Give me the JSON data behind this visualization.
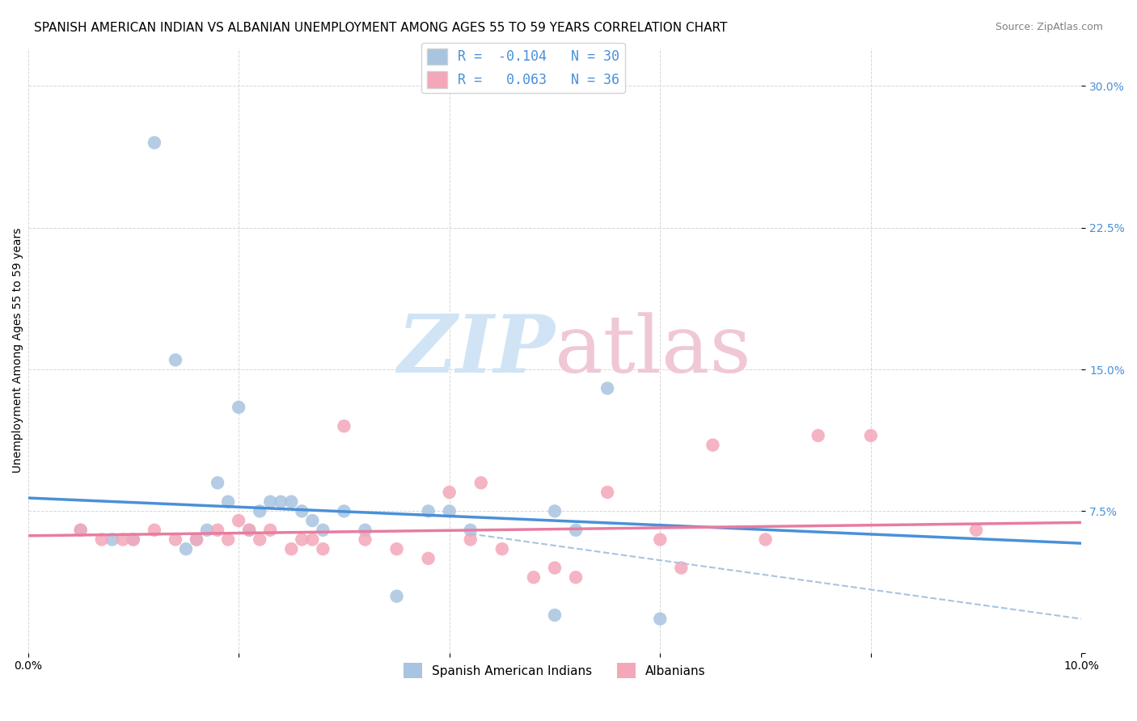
{
  "title": "SPANISH AMERICAN INDIAN VS ALBANIAN UNEMPLOYMENT AMONG AGES 55 TO 59 YEARS CORRELATION CHART",
  "source": "Source: ZipAtlas.com",
  "ylabel": "Unemployment Among Ages 55 to 59 years",
  "yticks": [
    0.0,
    0.075,
    0.15,
    0.225,
    0.3
  ],
  "ytick_labels": [
    "",
    "7.5%",
    "15.0%",
    "22.5%",
    "30.0%"
  ],
  "xlim": [
    0.0,
    0.1
  ],
  "ylim": [
    0.0,
    0.32
  ],
  "legend_line1": "R =  -0.104   N = 30",
  "legend_line2": "R =   0.063   N = 36",
  "color_blue": "#a8c4e0",
  "color_pink": "#f4a7b9",
  "line_blue": "#4a90d9",
  "line_pink": "#e87ca0",
  "line_dashed": "#a8c4e0",
  "blue_scatter_x": [
    0.005,
    0.008,
    0.01,
    0.012,
    0.014,
    0.015,
    0.016,
    0.017,
    0.018,
    0.019,
    0.02,
    0.021,
    0.022,
    0.023,
    0.024,
    0.025,
    0.026,
    0.027,
    0.028,
    0.03,
    0.032,
    0.035,
    0.038,
    0.04,
    0.042,
    0.05,
    0.05,
    0.052,
    0.055,
    0.06
  ],
  "blue_scatter_y": [
    0.065,
    0.06,
    0.06,
    0.27,
    0.155,
    0.055,
    0.06,
    0.065,
    0.09,
    0.08,
    0.13,
    0.065,
    0.075,
    0.08,
    0.08,
    0.08,
    0.075,
    0.07,
    0.065,
    0.075,
    0.065,
    0.03,
    0.075,
    0.075,
    0.065,
    0.075,
    0.02,
    0.065,
    0.14,
    0.018
  ],
  "pink_scatter_x": [
    0.005,
    0.007,
    0.009,
    0.01,
    0.012,
    0.014,
    0.016,
    0.018,
    0.019,
    0.02,
    0.021,
    0.022,
    0.023,
    0.025,
    0.026,
    0.027,
    0.028,
    0.03,
    0.032,
    0.035,
    0.038,
    0.04,
    0.042,
    0.043,
    0.045,
    0.048,
    0.05,
    0.052,
    0.055,
    0.06,
    0.062,
    0.065,
    0.07,
    0.075,
    0.08,
    0.09
  ],
  "pink_scatter_y": [
    0.065,
    0.06,
    0.06,
    0.06,
    0.065,
    0.06,
    0.06,
    0.065,
    0.06,
    0.07,
    0.065,
    0.06,
    0.065,
    0.055,
    0.06,
    0.06,
    0.055,
    0.12,
    0.06,
    0.055,
    0.05,
    0.085,
    0.06,
    0.09,
    0.055,
    0.04,
    0.045,
    0.04,
    0.085,
    0.06,
    0.045,
    0.11,
    0.06,
    0.115,
    0.115,
    0.065
  ],
  "blue_trend_x": [
    0.0,
    0.1
  ],
  "blue_trend_y": [
    0.082,
    0.058
  ],
  "pink_trend_x": [
    0.0,
    0.1
  ],
  "pink_trend_y": [
    0.062,
    0.069
  ],
  "dashed_trend_x": [
    0.042,
    0.1
  ],
  "dashed_trend_y": [
    0.063,
    0.018
  ],
  "grid_color": "#cccccc",
  "background_color": "#ffffff",
  "title_fontsize": 11,
  "source_fontsize": 9,
  "label_fontsize": 10,
  "tick_fontsize": 10,
  "watermark_fontsize": 72,
  "watermark_color": "#d0e4f5",
  "watermark_color2": "#f0c8d5"
}
